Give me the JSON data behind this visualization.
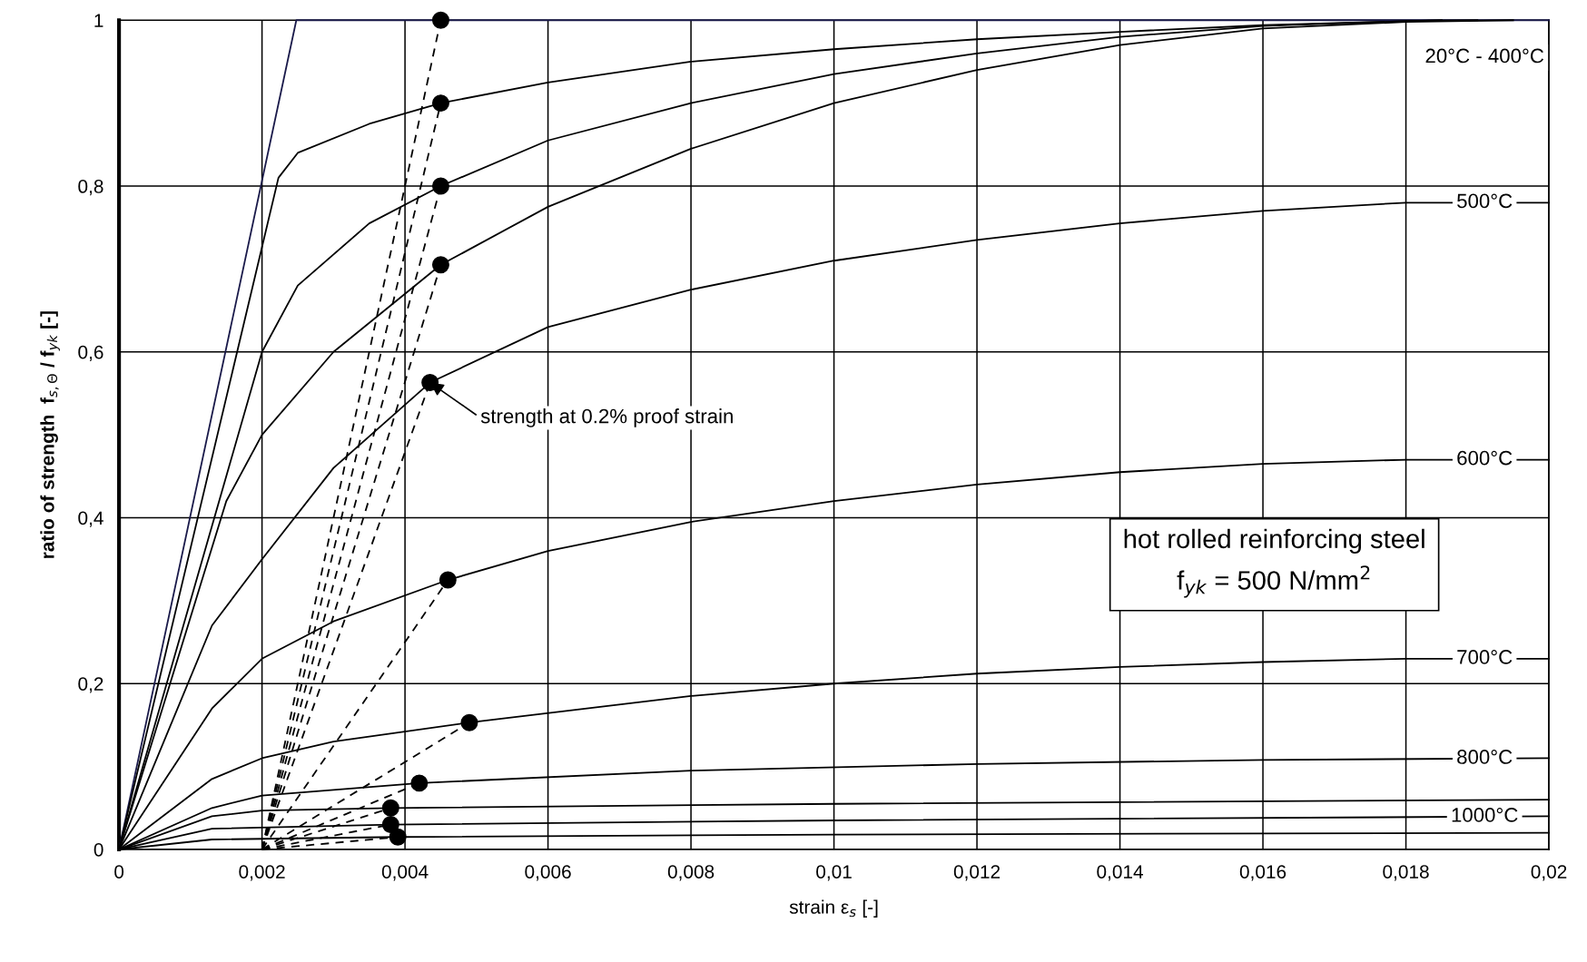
{
  "chart_data": {
    "type": "line",
    "xlabel": "strain ε$_{s}$ [-]",
    "ylabel": "ratio of strength  f$_{s,Θ}$ / f$_{yk}$ [-]",
    "xlim": [
      0,
      0.02
    ],
    "ylim": [
      0,
      1
    ],
    "xticks": [
      0,
      {
        "value": 0.002,
        "label": "0,002"
      },
      {
        "value": 0.004,
        "label": "0,004"
      },
      {
        "value": 0.006,
        "label": "0,006"
      },
      {
        "value": 0.008,
        "label": "0,008"
      },
      {
        "value": 0.01,
        "label": "0,01"
      },
      {
        "value": 0.012,
        "label": "0,012"
      },
      {
        "value": 0.014,
        "label": "0,014"
      },
      {
        "value": 0.016,
        "label": "0,016"
      },
      {
        "value": 0.018,
        "label": "0,018"
      },
      {
        "value": 0.02,
        "label": "0,02"
      }
    ],
    "yticks": [
      0,
      {
        "value": 0.2,
        "label": "0,2"
      },
      {
        "value": 0.4,
        "label": "0,4"
      },
      {
        "value": 0.6,
        "label": "0,6"
      },
      {
        "value": 0.8,
        "label": "0,8"
      },
      1
    ],
    "grid": true,
    "line_style": "solid",
    "marker": "none",
    "series": [
      {
        "color": "#1a1a4a",
        "x": [
          0,
          0.00248,
          0.02
        ],
        "values": [
          0,
          1,
          1
        ]
      },
      {
        "color": "#000000",
        "x": [
          0,
          0.00223,
          0.0025,
          0.0035,
          0.0045,
          0.006,
          0.008,
          0.01,
          0.012,
          0.014,
          0.016,
          0.0185
        ],
        "values": [
          0,
          0.81,
          0.84,
          0.875,
          0.9,
          0.925,
          0.95,
          0.965,
          0.977,
          0.986,
          0.994,
          1
        ]
      },
      {
        "color": "#000000",
        "x": [
          0,
          0.002,
          0.0025,
          0.0035,
          0.0045,
          0.006,
          0.008,
          0.01,
          0.012,
          0.014,
          0.016,
          0.018,
          0.019
        ],
        "values": [
          0,
          0.6,
          0.68,
          0.755,
          0.8,
          0.855,
          0.9,
          0.935,
          0.96,
          0.98,
          0.993,
          0.999,
          1
        ]
      },
      {
        "color": "#000000",
        "x": [
          0,
          0.0015,
          0.002,
          0.003,
          0.0045,
          0.006,
          0.008,
          0.01,
          0.012,
          0.014,
          0.016,
          0.018,
          0.0195
        ],
        "values": [
          0,
          0.42,
          0.5,
          0.6,
          0.705,
          0.775,
          0.845,
          0.9,
          0.94,
          0.97,
          0.99,
          0.998,
          1
        ]
      },
      {
        "name": "500°C",
        "color": "#000000",
        "x": [
          0,
          0.0013,
          0.002,
          0.003,
          0.00435,
          0.006,
          0.008,
          0.01,
          0.012,
          0.014,
          0.016,
          0.018,
          0.02
        ],
        "values": [
          0,
          0.27,
          0.35,
          0.46,
          0.563,
          0.63,
          0.675,
          0.71,
          0.735,
          0.755,
          0.77,
          0.78,
          0.78
        ]
      },
      {
        "name": "600°C",
        "color": "#000000",
        "x": [
          0,
          0.0013,
          0.002,
          0.003,
          0.0046,
          0.006,
          0.008,
          0.01,
          0.012,
          0.014,
          0.016,
          0.018,
          0.02
        ],
        "values": [
          0,
          0.17,
          0.23,
          0.275,
          0.325,
          0.36,
          0.395,
          0.42,
          0.44,
          0.455,
          0.465,
          0.47,
          0.47
        ]
      },
      {
        "name": "700°C",
        "color": "#000000",
        "x": [
          0,
          0.0013,
          0.002,
          0.003,
          0.0049,
          0.008,
          0.01,
          0.012,
          0.014,
          0.016,
          0.018,
          0.02
        ],
        "values": [
          0,
          0.085,
          0.11,
          0.13,
          0.153,
          0.185,
          0.2,
          0.212,
          0.22,
          0.226,
          0.23,
          0.23
        ]
      },
      {
        "name": "800°C",
        "color": "#000000",
        "x": [
          0,
          0.0013,
          0.002,
          0.0042,
          0.008,
          0.012,
          0.016,
          0.02
        ],
        "values": [
          0,
          0.05,
          0.065,
          0.08,
          0.095,
          0.103,
          0.108,
          0.11
        ]
      },
      {
        "color": "#000000",
        "x": [
          0,
          0.0013,
          0.002,
          0.0038,
          0.01,
          0.02
        ],
        "values": [
          0,
          0.04,
          0.047,
          0.05,
          0.055,
          0.06
        ]
      },
      {
        "name": "1000°C",
        "color": "#000000",
        "x": [
          0,
          0.0013,
          0.0038,
          0.01,
          0.02
        ],
        "values": [
          0,
          0.025,
          0.03,
          0.035,
          0.04
        ]
      },
      {
        "color": "#000000",
        "x": [
          0,
          0.0013,
          0.0039,
          0.01,
          0.02
        ],
        "values": [
          0,
          0.012,
          0.015,
          0.018,
          0.02
        ]
      },
      {
        "color": "#000000",
        "line_style": "dashed",
        "x": [
          0.002,
          0.0045
        ],
        "values": [
          0,
          1
        ]
      },
      {
        "color": "#000000",
        "line_style": "dashed",
        "x": [
          0.002,
          0.0045
        ],
        "values": [
          0,
          0.9
        ]
      },
      {
        "color": "#000000",
        "line_style": "dashed",
        "x": [
          0.002,
          0.0045
        ],
        "values": [
          0,
          0.8
        ]
      },
      {
        "color": "#000000",
        "line_style": "dashed",
        "x": [
          0.002,
          0.0045
        ],
        "values": [
          0,
          0.705
        ]
      },
      {
        "color": "#000000",
        "line_style": "dashed",
        "x": [
          0.002,
          0.00435
        ],
        "values": [
          0,
          0.563
        ]
      },
      {
        "color": "#000000",
        "line_style": "dashed",
        "x": [
          0.002,
          0.0046
        ],
        "values": [
          0,
          0.325
        ]
      },
      {
        "color": "#000000",
        "line_style": "dashed",
        "x": [
          0.002,
          0.0049
        ],
        "values": [
          0,
          0.153
        ]
      },
      {
        "color": "#000000",
        "line_style": "dashed",
        "x": [
          0.002,
          0.0042
        ],
        "values": [
          0,
          0.08
        ]
      },
      {
        "color": "#000000",
        "line_style": "dashed",
        "x": [
          0.002,
          0.0038
        ],
        "values": [
          0,
          0.05
        ]
      },
      {
        "color": "#000000",
        "line_style": "dashed",
        "x": [
          0.002,
          0.0038
        ],
        "values": [
          0,
          0.03
        ]
      },
      {
        "color": "#000000",
        "line_style": "dashed",
        "x": [
          0.002,
          0.0039
        ],
        "values": [
          0,
          0.015
        ]
      },
      {
        "type": "scatter",
        "color": "#000000",
        "marker": "circle",
        "x": [
          0.0045,
          0.0045,
          0.0045,
          0.0045,
          0.00435,
          0.0046,
          0.0049,
          0.0042,
          0.0038,
          0.0038,
          0.0039
        ],
        "values": [
          1,
          0.9,
          0.8,
          0.705,
          0.563,
          0.325,
          0.153,
          0.08,
          0.05,
          0.03,
          0.015
        ]
      }
    ],
    "annotations": [
      {
        "text": "strength at 0.2% proof strain",
        "x": 0.00435,
        "y": 0.563
      },
      "hot rolled reinforcing steel",
      "f$_{yk}$ = 500 N/mm$^{2}$",
      "20°C - 400°C"
    ]
  }
}
